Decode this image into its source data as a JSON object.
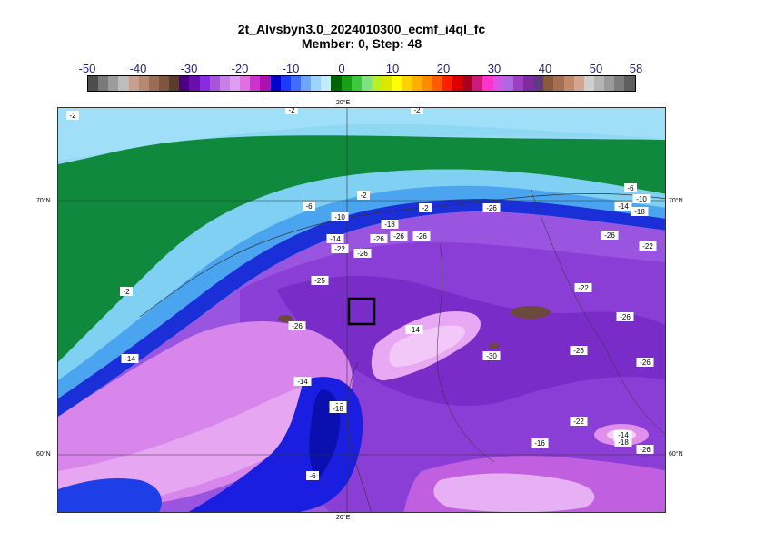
{
  "title": {
    "line1": "2t_Alvsbyn3.0_2024010300_ecmf_i4ql_fc",
    "line2": "Member: 0, Step: 48"
  },
  "colorbar": {
    "tick_labels": [
      "-50",
      "-40",
      "-30",
      "-20",
      "-10",
      "0",
      "10",
      "20",
      "30",
      "40",
      "50",
      "58"
    ],
    "colors": [
      "#4d4d4d",
      "#7a7a7a",
      "#9c9c9c",
      "#bdbdbd",
      "#c8a090",
      "#b58870",
      "#9c6d55",
      "#7e553f",
      "#5a3d2c",
      "#4b0082",
      "#6a0dad",
      "#8a2be2",
      "#a855d6",
      "#c77fe8",
      "#d9a0f0",
      "#e070e0",
      "#cc33cc",
      "#b00fb0",
      "#0000cc",
      "#1a3bff",
      "#3f6dff",
      "#6ea5ff",
      "#9dd3ff",
      "#c3ecff",
      "#006400",
      "#16a016",
      "#3ec83e",
      "#7fe27f",
      "#b8ee2a",
      "#dce800",
      "#ffff00",
      "#ffd200",
      "#ffae00",
      "#ff8a00",
      "#ff5a00",
      "#ff1e00",
      "#d80000",
      "#aa0020",
      "#cc1a7a",
      "#ff33cc",
      "#d655e6",
      "#b066e0",
      "#9c3fc0",
      "#7e2aa0",
      "#5e3a80",
      "#8a5a3c",
      "#a67050",
      "#c08a6a",
      "#d2a690",
      "#cfcfcf",
      "#b5b5b5",
      "#9a9a9a",
      "#7c7c7c",
      "#5e5e5e"
    ]
  },
  "map": {
    "grid_labels": {
      "lon_top": "20°E",
      "lon_bottom": "20°E",
      "lat_70_left": "70°N",
      "lat_70_right": "70°N",
      "lat_60_left": "60°N",
      "lat_60_right": "60°N"
    },
    "contour_labels": [
      "-2",
      "-2",
      "-2",
      "-2",
      "-2",
      "-2",
      "-6",
      "-6",
      "-10",
      "-10",
      "-14",
      "-18",
      "-18",
      "-14",
      "-22",
      "-26",
      "-26",
      "-26",
      "-26",
      "-26",
      "-14",
      "-25",
      "-26",
      "-22",
      "-22",
      "-26",
      "-26",
      "-14",
      "-30",
      "-26",
      "-26",
      "-10",
      "-14",
      "-18",
      "-10",
      "-6",
      "-22",
      "-16",
      "-14",
      "-18",
      "-26"
    ],
    "station_marker": "black-square"
  }
}
